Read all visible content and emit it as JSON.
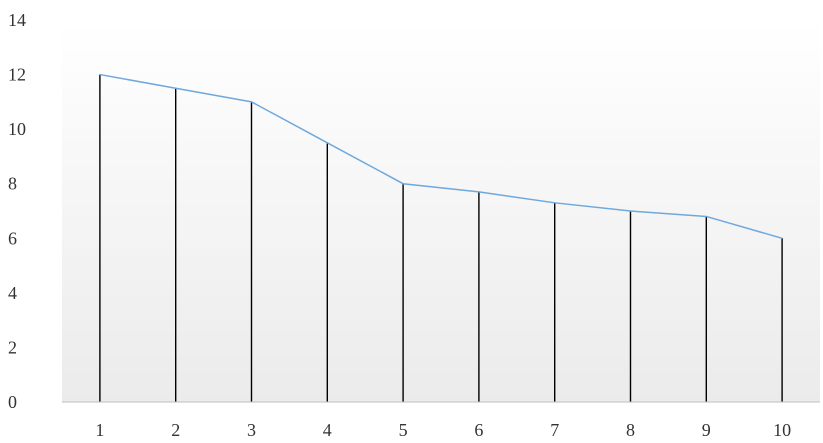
{
  "chart_data": {
    "type": "line",
    "x": [
      1,
      2,
      3,
      4,
      5,
      6,
      7,
      8,
      9,
      10
    ],
    "series": [
      {
        "values": [
          12,
          11.5,
          11,
          9.5,
          8,
          7.7,
          7.3,
          7,
          6.8,
          6
        ]
      }
    ],
    "drop_lines": true,
    "xlim": [
      0.5,
      10.5
    ],
    "ylim": [
      0,
      14
    ],
    "y_ticks": [
      0,
      2,
      4,
      6,
      8,
      10,
      12,
      14
    ],
    "x_ticks": [
      1,
      2,
      3,
      4,
      5,
      6,
      7,
      8,
      9,
      10
    ],
    "grid": false,
    "colors": {
      "series_line": "#6fa8dc",
      "drop_line": "#000000",
      "plot_background_bottom": "#ebebeb",
      "plot_background_top": "#ffffff",
      "axis_line": "#bfbfbf",
      "tick_text": "#333333"
    }
  }
}
